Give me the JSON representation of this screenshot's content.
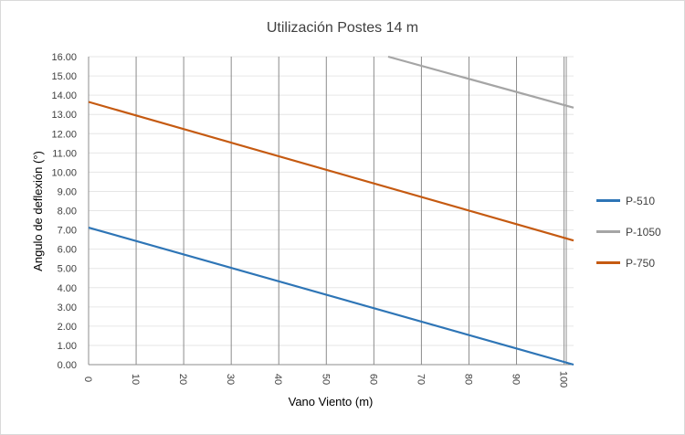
{
  "chart_data": {
    "type": "line",
    "title": "Utilización  Postes 14 m",
    "xlabel": "Vano Viento (m)",
    "ylabel": "Angulo de deflexión (°)",
    "xlim": [
      0,
      102
    ],
    "ylim": [
      0,
      16
    ],
    "x_ticks": [
      "0",
      "10",
      "20",
      "30",
      "40",
      "50",
      "60",
      "70",
      "80",
      "90",
      "100"
    ],
    "y_ticks": [
      "0.00",
      "1.00",
      "2.00",
      "3.00",
      "4.00",
      "5.00",
      "6.00",
      "7.00",
      "8.00",
      "9.00",
      "10.00",
      "11.00",
      "12.00",
      "13.00",
      "14.00",
      "15.00",
      "16.00"
    ],
    "grid": "vertical",
    "legend_position": "right",
    "series": [
      {
        "name": "P-510",
        "color": "#2e75b6",
        "x": [
          0,
          102
        ],
        "y": [
          7.12,
          0.0
        ]
      },
      {
        "name": "P-1050",
        "color": "#a5a5a5",
        "x": [
          63,
          102
        ],
        "y": [
          16.0,
          13.35
        ]
      },
      {
        "name": "P-750",
        "color": "#c55a11",
        "x": [
          0,
          102
        ],
        "y": [
          13.65,
          6.45
        ]
      }
    ]
  }
}
